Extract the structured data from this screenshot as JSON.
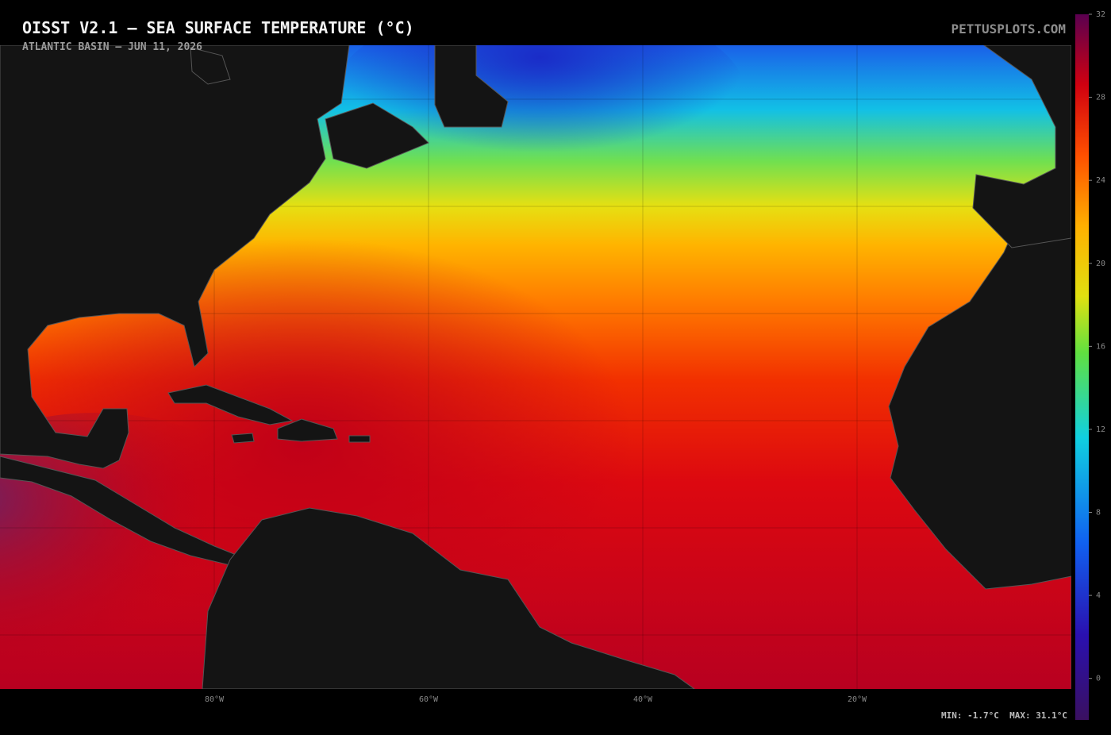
{
  "header": {
    "title": "OISST V2.1 — SEA SURFACE TEMPERATURE (°C)",
    "subtitle": "ATLANTIC BASIN — JUN 11, 2026",
    "brand": "PETTUSPLOTS.COM"
  },
  "map": {
    "longitude_labels": [
      "80°W",
      "60°W",
      "40°W",
      "20°W"
    ]
  },
  "colorbar": {
    "lim": [
      -2,
      32
    ],
    "ticks": [
      32,
      28,
      24,
      20,
      16,
      12,
      8,
      4,
      0
    ]
  },
  "footer": {
    "stats": "MIN: -1.7°C  MAX: 31.1°C"
  }
}
